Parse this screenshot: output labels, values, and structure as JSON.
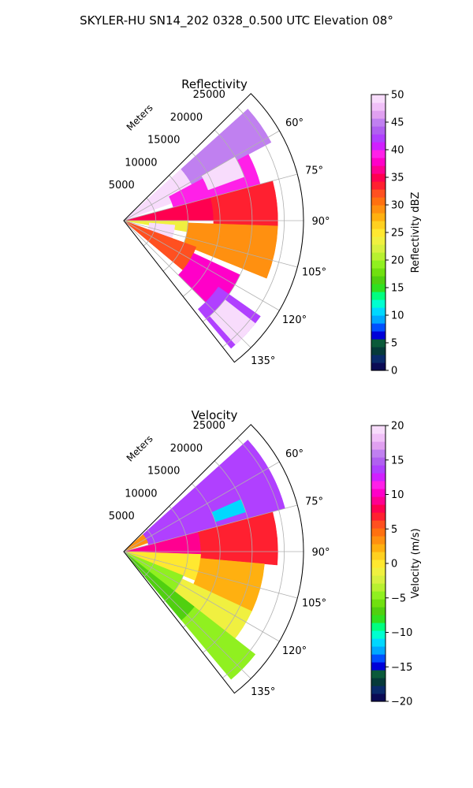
{
  "suptitle": "SKYLER-HU  SN14_202  0328_0.500 UTC Elevation 08°",
  "chart_data": [
    {
      "type": "heatmap",
      "projection": "polar-sector",
      "title": "Reflectivity",
      "rlabel": "Meters",
      "r_ticks": [
        5000,
        10000,
        15000,
        20000,
        25000
      ],
      "r_tick_labels": [
        "5000",
        "10000",
        "15000",
        "20000",
        "25000"
      ],
      "rlim": [
        0,
        28000
      ],
      "theta_ticks_deg": [
        60,
        75,
        90,
        105,
        120,
        135
      ],
      "theta_tick_labels": [
        "60°",
        "75°",
        "90°",
        "105°",
        "120°",
        "135°"
      ],
      "theta_range_deg": [
        45,
        142
      ],
      "grid": true,
      "colorbar": {
        "label": "Reflectivity dBZ",
        "range": [
          0,
          50
        ],
        "ticks": [
          0,
          5,
          10,
          15,
          20,
          25,
          30,
          35,
          40,
          45,
          50
        ],
        "tick_labels": [
          "0",
          "5",
          "10",
          "15",
          "20",
          "25",
          "30",
          "35",
          "40",
          "45",
          "50"
        ],
        "colors": [
          "#0b0b55",
          "#0a2a6a",
          "#063a3a",
          "#0a5a3a",
          "#0000d8",
          "#0050ff",
          "#00a8ff",
          "#00d8ff",
          "#00ffd0",
          "#00ff80",
          "#30e020",
          "#50d010",
          "#70e010",
          "#90f020",
          "#b8f030",
          "#d8f040",
          "#f0f040",
          "#ffe830",
          "#ffd020",
          "#ffb010",
          "#ff9010",
          "#ff7010",
          "#ff5020",
          "#ff2030",
          "#ff0050",
          "#ff0090",
          "#ff00c8",
          "#ff20e8",
          "#d020ff",
          "#b040ff",
          "#b060f0",
          "#c080f0",
          "#e0a0f0",
          "#f0c0f8",
          "#f8dcfc"
        ]
      },
      "cells": [
        {
          "az": [
            48,
            70
          ],
          "r": [
            0,
            12000
          ],
          "level": 36
        },
        {
          "az": [
            48,
            62
          ],
          "r": [
            12000,
            26000
          ],
          "level": 31
        },
        {
          "az": [
            62,
            75
          ],
          "r": [
            8000,
            22000
          ],
          "level": 27
        },
        {
          "az": [
            60,
            70
          ],
          "r": [
            14000,
            20000
          ],
          "level": 37
        },
        {
          "az": [
            75,
            90
          ],
          "r": [
            0,
            14000
          ],
          "level": 24
        },
        {
          "az": [
            75,
            92
          ],
          "r": [
            14000,
            24000
          ],
          "level": 23
        },
        {
          "az": [
            90,
            100
          ],
          "r": [
            0,
            10000
          ],
          "level": 16
        },
        {
          "az": [
            95,
            110
          ],
          "r": [
            4000,
            8000
          ],
          "level": 35
        },
        {
          "az": [
            92,
            112
          ],
          "r": [
            10000,
            24000
          ],
          "level": 20
        },
        {
          "az": [
            110,
            130
          ],
          "r": [
            0,
            12000
          ],
          "level": 22
        },
        {
          "az": [
            115,
            135
          ],
          "r": [
            12000,
            20000
          ],
          "level": 26
        },
        {
          "az": [
            125,
            140
          ],
          "r": [
            18000,
            26000
          ],
          "level": 29
        },
        {
          "az": [
            128,
            138
          ],
          "r": [
            20000,
            26000
          ],
          "level": 40
        }
      ]
    },
    {
      "type": "heatmap",
      "projection": "polar-sector",
      "title": "Velocity",
      "rlabel": "Meters",
      "r_ticks": [
        5000,
        10000,
        15000,
        20000,
        25000
      ],
      "r_tick_labels": [
        "5000",
        "10000",
        "15000",
        "20000",
        "25000"
      ],
      "rlim": [
        0,
        28000
      ],
      "theta_ticks_deg": [
        60,
        75,
        90,
        105,
        120,
        135
      ],
      "theta_tick_labels": [
        "60°",
        "75°",
        "90°",
        "105°",
        "120°",
        "135°"
      ],
      "theta_range_deg": [
        45,
        142
      ],
      "grid": true,
      "colorbar": {
        "label": "Velocity (m/s)",
        "range": [
          -20,
          20
        ],
        "ticks": [
          -20,
          -15,
          -10,
          -5,
          0,
          5,
          10,
          15,
          20
        ],
        "tick_labels": [
          "−20",
          "−15",
          "−10",
          "−5",
          "0",
          "5",
          "10",
          "15",
          "20"
        ],
        "colors": [
          "#0b0b55",
          "#0a2a6a",
          "#063a3a",
          "#0a5a3a",
          "#0000d8",
          "#0050ff",
          "#00a8ff",
          "#00d8ff",
          "#00ffd0",
          "#00ff80",
          "#30e020",
          "#50d010",
          "#70e010",
          "#90f020",
          "#b8f030",
          "#d8f040",
          "#f0f040",
          "#ffe830",
          "#ffd020",
          "#ffb010",
          "#ff9010",
          "#ff7010",
          "#ff5020",
          "#ff2030",
          "#ff0050",
          "#ff0090",
          "#ff00c8",
          "#ff20e8",
          "#d020ff",
          "#b040ff",
          "#b060f0",
          "#c080f0",
          "#e0a0f0",
          "#f0c0f8",
          "#f8dcfc"
        ]
      },
      "cells": [
        {
          "az": [
            48,
            75
          ],
          "r": [
            4000,
            26000
          ],
          "level": 29
        },
        {
          "az": [
            48,
            70
          ],
          "r": [
            0,
            4000
          ],
          "level": 20
        },
        {
          "az": [
            66,
            72
          ],
          "r": [
            15000,
            20000
          ],
          "level": 7
        },
        {
          "az": [
            75,
            92
          ],
          "r": [
            0,
            12000
          ],
          "level": 25
        },
        {
          "az": [
            75,
            95
          ],
          "r": [
            12000,
            24000
          ],
          "level": 23
        },
        {
          "az": [
            92,
            112
          ],
          "r": [
            0,
            12000
          ],
          "level": 17
        },
        {
          "az": [
            95,
            115
          ],
          "r": [
            12000,
            22000
          ],
          "level": 19
        },
        {
          "az": [
            112,
            128
          ],
          "r": [
            0,
            10000
          ],
          "level": 13
        },
        {
          "az": [
            115,
            130
          ],
          "r": [
            10000,
            22000
          ],
          "level": 16
        },
        {
          "az": [
            128,
            140
          ],
          "r": [
            0,
            14000
          ],
          "level": 11
        },
        {
          "az": [
            128,
            140
          ],
          "r": [
            14000,
            26000
          ],
          "level": 13
        }
      ]
    }
  ]
}
